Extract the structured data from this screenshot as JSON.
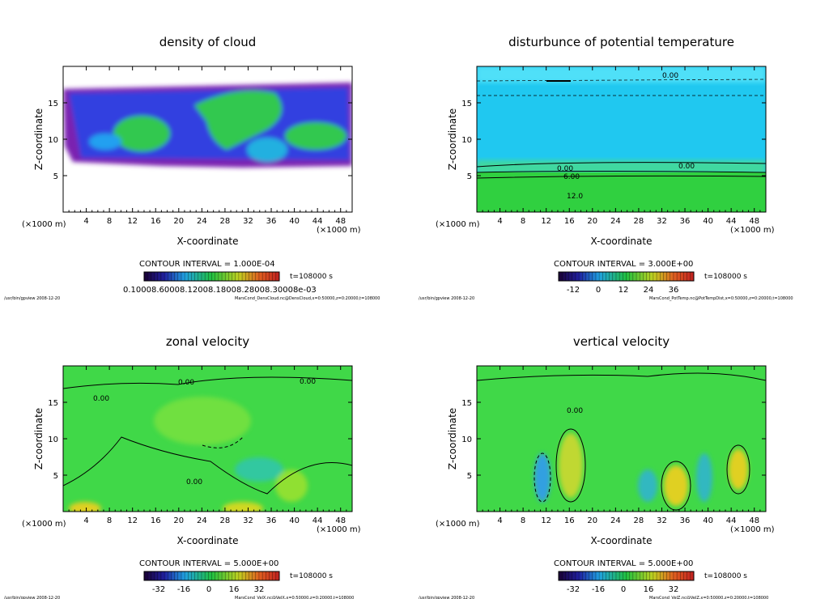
{
  "chart_data": [
    {
      "type": "heatmap",
      "title": "density of cloud",
      "xlabel": "X-coordinate",
      "ylabel": "Z-coordinate",
      "xunit": "(×1000 m)",
      "xlim": [
        0,
        50
      ],
      "ylim": [
        0,
        20
      ],
      "xticks": [
        4,
        8,
        12,
        16,
        20,
        24,
        28,
        32,
        36,
        40,
        44,
        48
      ],
      "yticks": [
        5,
        10,
        15
      ],
      "contour_interval": "CONTOUR INTERVAL = 1.000E-04",
      "time": "t=108000 s",
      "colorbar_labels": "0.10008.60008.12008.18008.28008.30008e-03",
      "footer_left": "/usr/bin/gpview  2008-12-20",
      "footer_right": "MarsCond_DensCloud.nc@DensCloud,x=0:50000,z=0:20000,t=108000"
    },
    {
      "type": "heatmap",
      "title": "disturbunce of potential temperature",
      "xlabel": "X-coordinate",
      "ylabel": "Z-coordinate",
      "xunit": "(×1000 m)",
      "xlim": [
        0,
        50
      ],
      "ylim": [
        0,
        20
      ],
      "xticks": [
        4,
        8,
        12,
        16,
        20,
        24,
        28,
        32,
        36,
        40,
        44,
        48
      ],
      "yticks": [
        5,
        10,
        15
      ],
      "contour_interval": "CONTOUR INTERVAL = 3.000E+00",
      "time": "t=108000 s",
      "colorbar_ticks": [
        "-12",
        "0",
        "12",
        "24",
        "36"
      ],
      "contour_labels": [
        "0.00",
        "0.00",
        "0.00",
        "6.00",
        "12.0"
      ],
      "footer_left": "/usr/bin/gpview  2008-12-20",
      "footer_right": "MarsCond_PotTemp.nc@PotTempDist,x=0:50000,z=0:20000,t=108000"
    },
    {
      "type": "heatmap",
      "title": "zonal velocity",
      "xlabel": "X-coordinate",
      "ylabel": "Z-coordinate",
      "xunit": "(×1000 m)",
      "xlim": [
        0,
        50
      ],
      "ylim": [
        0,
        20
      ],
      "xticks": [
        4,
        8,
        12,
        16,
        20,
        24,
        28,
        32,
        36,
        40,
        44,
        48
      ],
      "yticks": [
        5,
        10,
        15
      ],
      "contour_interval": "CONTOUR INTERVAL = 5.000E+00",
      "time": "t=108000 s",
      "colorbar_ticks": [
        "-32",
        "-16",
        "0",
        "16",
        "32"
      ],
      "contour_labels": [
        "0.00",
        "0.00",
        "0.00",
        "0.00"
      ],
      "footer_left": "/usr/bin/gpview  2008-12-20",
      "footer_right": "MarsCond_VelX.nc@VelX,x=0:50000,z=0:20000,t=108000"
    },
    {
      "type": "heatmap",
      "title": "vertical velocity",
      "xlabel": "X-coordinate",
      "ylabel": "Z-coordinate",
      "xunit": "(×1000 m)",
      "xlim": [
        0,
        50
      ],
      "ylim": [
        0,
        20
      ],
      "xticks": [
        4,
        8,
        12,
        16,
        20,
        24,
        28,
        32,
        36,
        40,
        44,
        48
      ],
      "yticks": [
        5,
        10,
        15
      ],
      "contour_interval": "CONTOUR INTERVAL = 5.000E+00",
      "time": "t=108000 s",
      "colorbar_ticks": [
        "-32",
        "-16",
        "0",
        "16",
        "32"
      ],
      "contour_labels": [
        "0.00"
      ],
      "footer_left": "/usr/bin/gpview  2008-12-20",
      "footer_right": "MarsCond_VelZ.nc@VelZ,x=0:50000,z=0:20000,t=108000"
    }
  ]
}
